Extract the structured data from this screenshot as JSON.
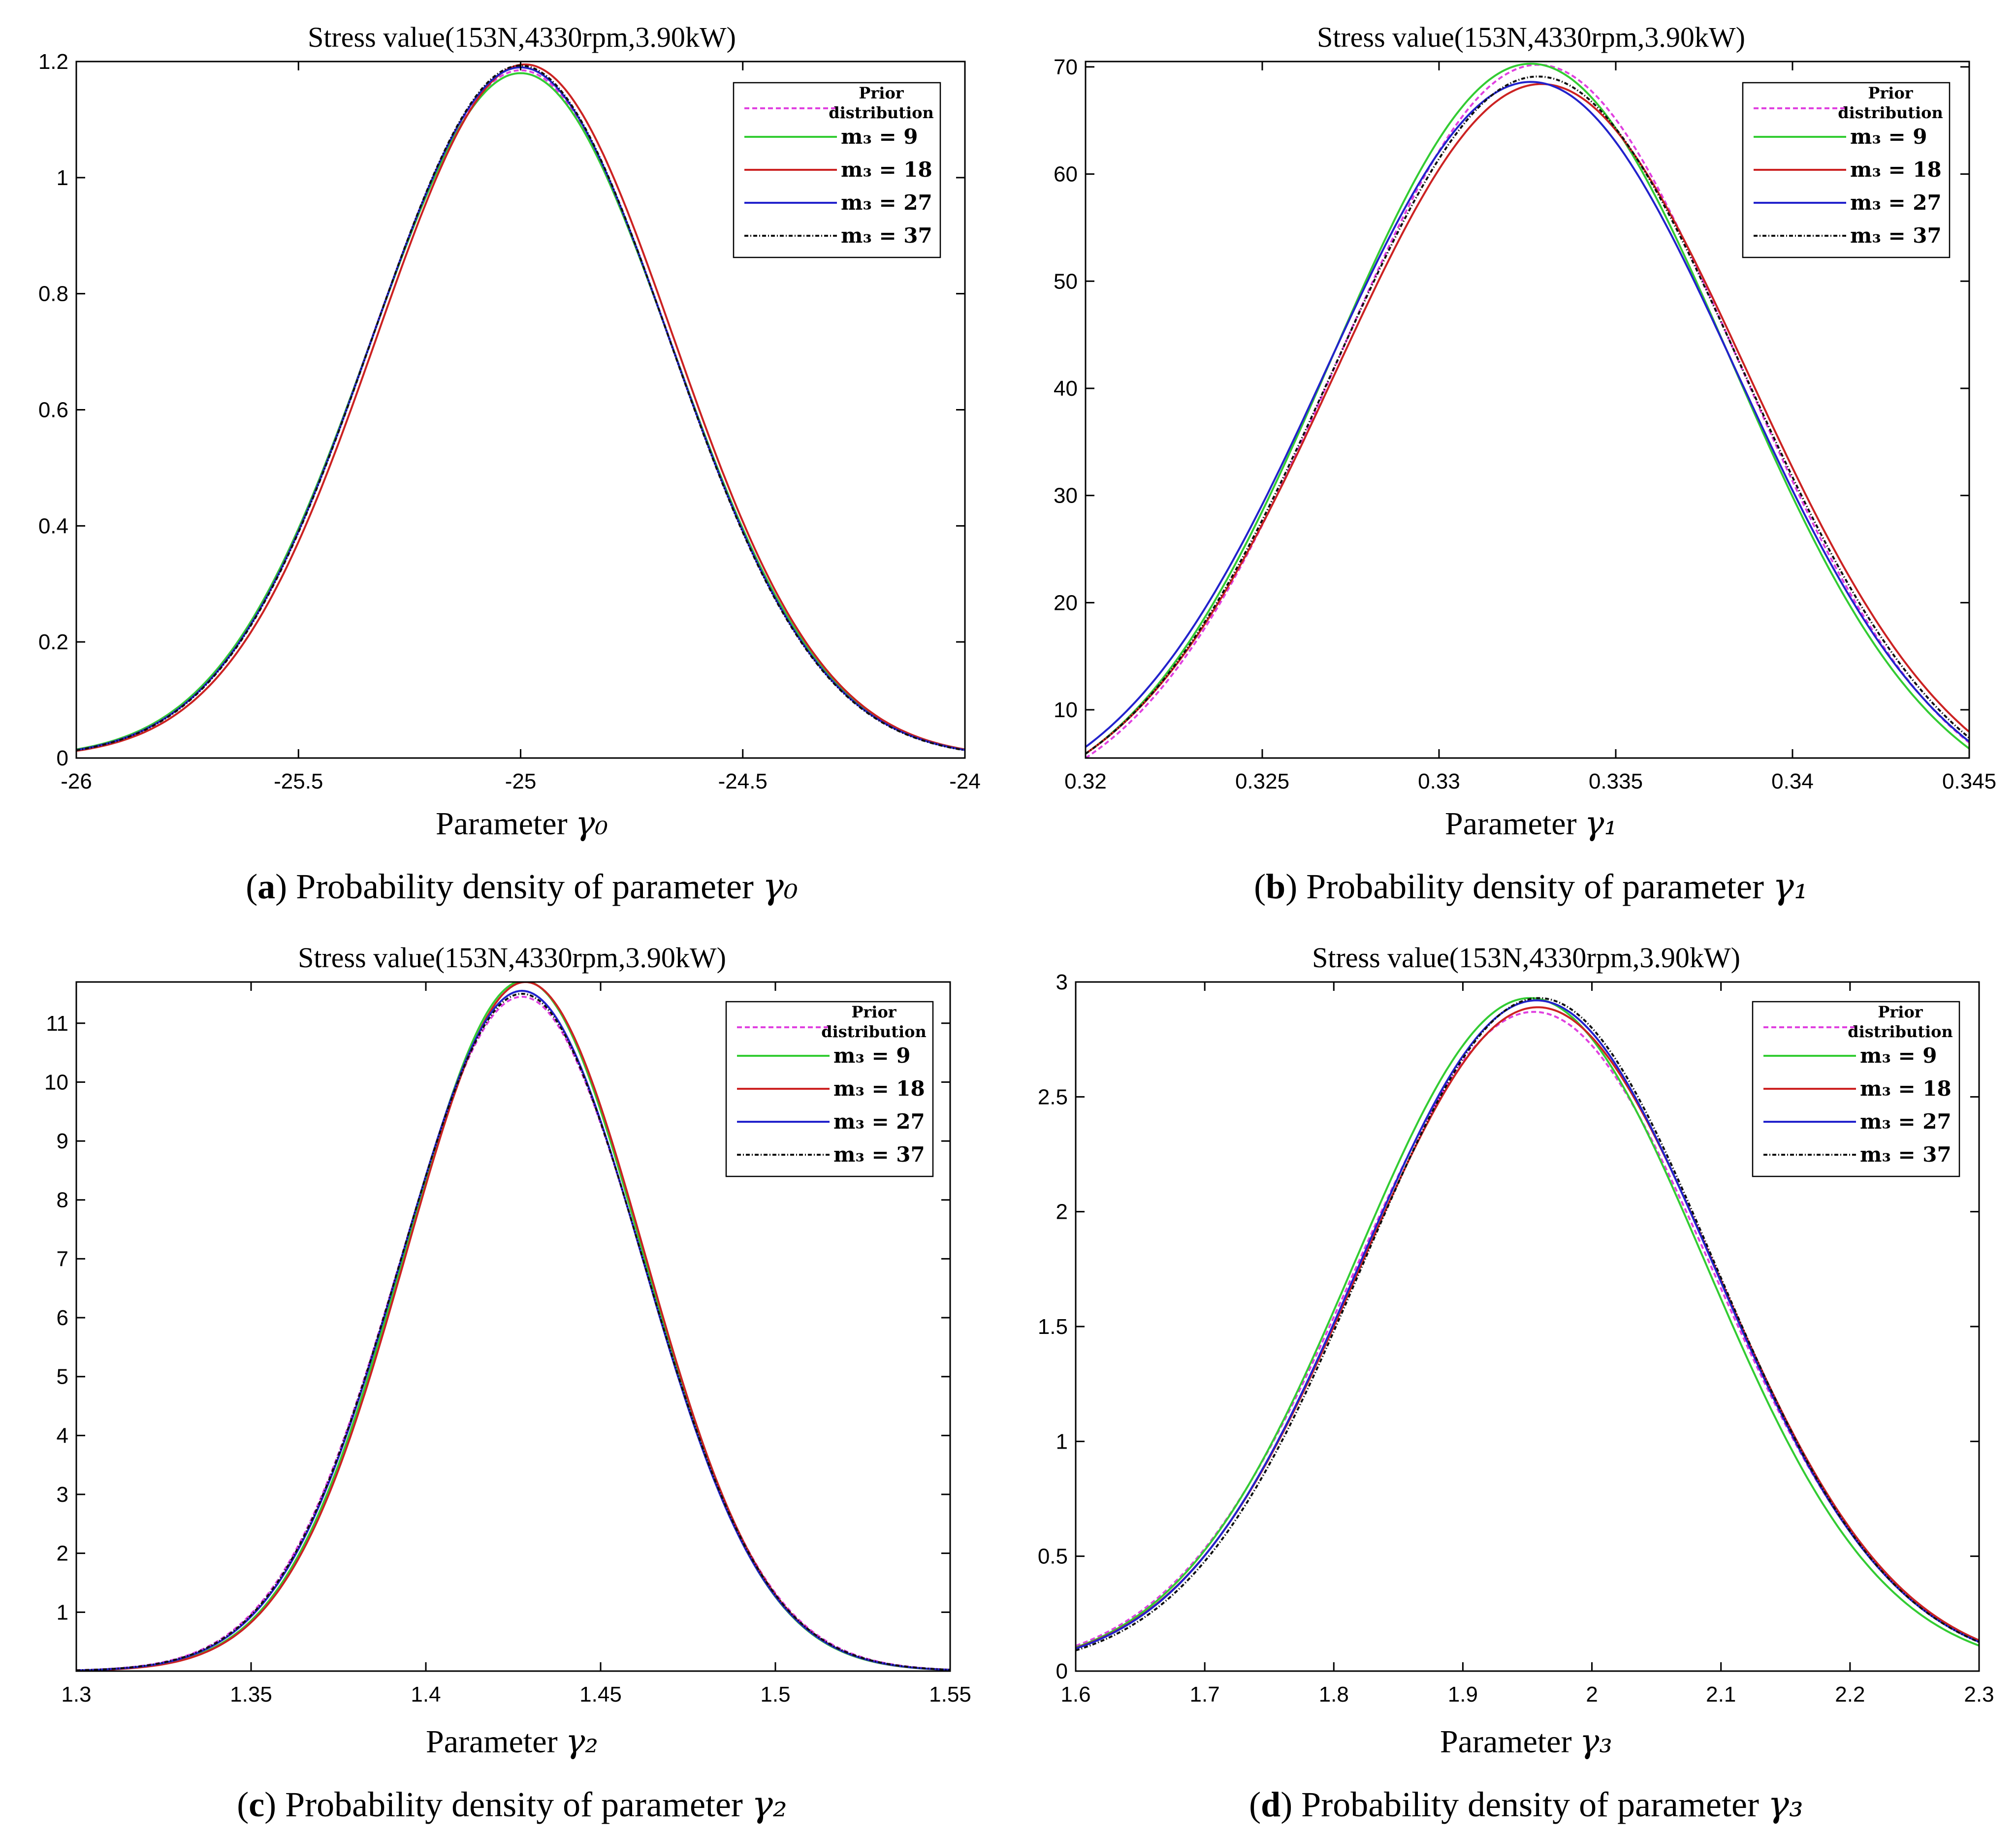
{
  "figure": {
    "colors": {
      "prior": "#e040e0",
      "m9": "#33cc33",
      "m18": "#cc2222",
      "m27": "#2222cc",
      "m37": "#111111"
    },
    "legend": {
      "prior_line1": "Prior",
      "prior_line2": "distribution",
      "labels": [
        "m₃ = 9",
        "m₃ = 18",
        "m₃ = 27",
        "m₃ = 37"
      ]
    }
  },
  "chart_data": [
    {
      "id": "a",
      "type": "line",
      "title": "Stress value(153N,4330rpm,3.90kW)",
      "xlabel_prefix": "Parameter ",
      "xlabel_symbol": "γ₀",
      "caption_letter": "a",
      "caption_text": " Probability density of parameter ",
      "caption_symbol": "γ₀",
      "xlim": [
        -26,
        -24
      ],
      "ylim": [
        0,
        1.2
      ],
      "xticks": [
        -26,
        -25.5,
        -25,
        -24.5,
        -24
      ],
      "xtick_labels": [
        "-26",
        "-25.5",
        "-25",
        "-24.5",
        "-24"
      ],
      "yticks": [
        0,
        0.2,
        0.4,
        0.6,
        0.8,
        1,
        1.2
      ],
      "ytick_labels": [
        "0",
        "0.2",
        "0.4",
        "0.6",
        "0.8",
        "1",
        "1.2"
      ],
      "series": [
        {
          "name": "Prior distribution",
          "key": "prior",
          "mean": -25.0,
          "peak": 1.185,
          "sigma": 0.337
        },
        {
          "name": "m3 = 9",
          "key": "m9",
          "mean": -25.0,
          "peak": 1.18,
          "sigma": 0.338
        },
        {
          "name": "m3 = 18",
          "key": "m18",
          "mean": -24.99,
          "peak": 1.195,
          "sigma": 0.334
        },
        {
          "name": "m3 = 27",
          "key": "m27",
          "mean": -25.0,
          "peak": 1.19,
          "sigma": 0.335
        },
        {
          "name": "m3 = 37",
          "key": "m37",
          "mean": -25.0,
          "peak": 1.193,
          "sigma": 0.334
        }
      ]
    },
    {
      "id": "b",
      "type": "line",
      "title": "Stress value(153N,4330rpm,3.90kW)",
      "xlabel_prefix": "Parameter ",
      "xlabel_symbol": "γ₁",
      "caption_letter": "b",
      "caption_text": " Probability density of parameter ",
      "caption_symbol": "γ₁",
      "xlim": [
        0.32,
        0.345
      ],
      "ylim": [
        5.5,
        70.5
      ],
      "xticks": [
        0.32,
        0.325,
        0.33,
        0.335,
        0.34,
        0.345
      ],
      "xtick_labels": [
        "0.32",
        "0.325",
        "0.33",
        "0.335",
        "0.34",
        "0.345"
      ],
      "yticks": [
        10,
        20,
        30,
        40,
        50,
        60,
        70
      ],
      "ytick_labels": [
        "10",
        "20",
        "30",
        "40",
        "50",
        "60",
        "70"
      ],
      "series": [
        {
          "name": "Prior distribution",
          "key": "prior",
          "mean": 0.3328,
          "peak": 70.2,
          "sigma": 0.00567
        },
        {
          "name": "m3 = 9",
          "key": "m9",
          "mean": 0.3326,
          "peak": 70.3,
          "sigma": 0.00566
        },
        {
          "name": "m3 = 18",
          "key": "m18",
          "mean": 0.3329,
          "peak": 68.4,
          "sigma": 0.00583
        },
        {
          "name": "m3 = 27",
          "key": "m27",
          "mean": 0.3326,
          "peak": 68.6,
          "sigma": 0.00581
        },
        {
          "name": "m3 = 37",
          "key": "m37",
          "mean": 0.3328,
          "peak": 69.1,
          "sigma": 0.00577
        }
      ]
    },
    {
      "id": "c",
      "type": "line",
      "title": "Stress value(153N,4330rpm,3.90kW)",
      "xlabel_prefix": "Parameter ",
      "xlabel_symbol": "γ₂",
      "caption_letter": "c",
      "caption_text": " Probability density of parameter ",
      "caption_symbol": "γ₂",
      "xlim": [
        1.3,
        1.55
      ],
      "ylim": [
        0,
        11.7
      ],
      "xticks": [
        1.3,
        1.35,
        1.4,
        1.45,
        1.5,
        1.55
      ],
      "xtick_labels": [
        "1.3",
        "1.35",
        "1.4",
        "1.45",
        "1.5",
        "1.55"
      ],
      "yticks": [
        1,
        2,
        3,
        4,
        5,
        6,
        7,
        8,
        9,
        10,
        11
      ],
      "ytick_labels": [
        "1",
        "2",
        "3",
        "4",
        "5",
        "6",
        "7",
        "8",
        "9",
        "10",
        "11"
      ],
      "series": [
        {
          "name": "Prior distribution",
          "key": "prior",
          "mean": 1.4275,
          "peak": 11.45,
          "sigma": 0.0349
        },
        {
          "name": "m3 = 9",
          "key": "m9",
          "mean": 1.428,
          "peak": 11.72,
          "sigma": 0.0341
        },
        {
          "name": "m3 = 18",
          "key": "m18",
          "mean": 1.4285,
          "peak": 11.7,
          "sigma": 0.0341
        },
        {
          "name": "m3 = 27",
          "key": "m27",
          "mean": 1.4275,
          "peak": 11.55,
          "sigma": 0.0345
        },
        {
          "name": "m3 = 37",
          "key": "m37",
          "mean": 1.4275,
          "peak": 11.5,
          "sigma": 0.0347
        }
      ]
    },
    {
      "id": "d",
      "type": "line",
      "title": "Stress value(153N,4330rpm,3.90kW)",
      "xlabel_prefix": "Parameter ",
      "xlabel_symbol": "γ₃",
      "caption_letter": "d",
      "caption_text": " Probability density of parameter ",
      "caption_symbol": "γ₃",
      "xlim": [
        1.6,
        2.3
      ],
      "ylim": [
        0,
        3
      ],
      "xticks": [
        1.6,
        1.7,
        1.8,
        1.9,
        2,
        2.1,
        2.2,
        2.3
      ],
      "xtick_labels": [
        "1.6",
        "1.7",
        "1.8",
        "1.9",
        "2",
        "2.1",
        "2.2",
        "2.3"
      ],
      "yticks": [
        0,
        0.5,
        1,
        1.5,
        2,
        2.5,
        3
      ],
      "ytick_labels": [
        "0",
        "0.5",
        "1",
        "1.5",
        "2",
        "2.5",
        "3"
      ],
      "series": [
        {
          "name": "Prior distribution",
          "key": "prior",
          "mean": 1.955,
          "peak": 2.87,
          "sigma": 0.139
        },
        {
          "name": "m3 = 9",
          "key": "m9",
          "mean": 1.952,
          "peak": 2.93,
          "sigma": 0.136
        },
        {
          "name": "m3 = 18",
          "key": "m18",
          "mean": 1.958,
          "peak": 2.89,
          "sigma": 0.138
        },
        {
          "name": "m3 = 27",
          "key": "m27",
          "mean": 1.957,
          "peak": 2.92,
          "sigma": 0.137
        },
        {
          "name": "m3 = 37",
          "key": "m37",
          "mean": 1.959,
          "peak": 2.93,
          "sigma": 0.136
        }
      ]
    }
  ]
}
